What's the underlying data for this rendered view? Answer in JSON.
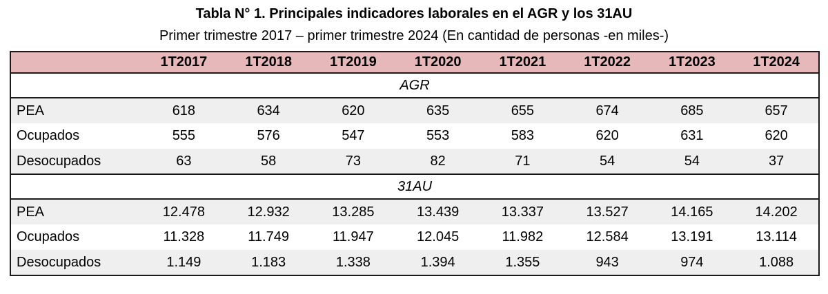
{
  "title": "Tabla N° 1. Principales indicadores laborales en el AGR y los 31AU",
  "subtitle": "Primer trimestre 2017 – primer trimestre 2024 (En cantidad de personas -en miles-)",
  "colors": {
    "header_bg": "#e6b8b9",
    "stripe_bg": "#efefef",
    "section_bg": "#ffffff",
    "border": "#1a1a1a",
    "text": "#000000"
  },
  "chart_data": {
    "type": "table",
    "title": "Tabla N° 1. Principales indicadores laborales en el AGR y los 31AU",
    "subtitle": "Primer trimestre 2017 – primer trimestre 2024 (En cantidad de personas -en miles-)",
    "columns": [
      "",
      "1T2017",
      "1T2018",
      "1T2019",
      "1T2020",
      "1T2021",
      "1T2022",
      "1T2023",
      "1T2024"
    ],
    "sections": [
      {
        "name": "AGR",
        "rows": [
          {
            "label": "PEA",
            "values": [
              "618",
              "634",
              "620",
              "635",
              "655",
              "674",
              "685",
              "657"
            ]
          },
          {
            "label": "Ocupados",
            "values": [
              "555",
              "576",
              "547",
              "553",
              "583",
              "620",
              "631",
              "620"
            ]
          },
          {
            "label": "Desocupados",
            "values": [
              "63",
              "58",
              "73",
              "82",
              "71",
              "54",
              "54",
              "37"
            ]
          }
        ]
      },
      {
        "name": "31AU",
        "rows": [
          {
            "label": "PEA",
            "values": [
              "12.478",
              "12.932",
              "13.285",
              "13.439",
              "13.337",
              "13.527",
              "14.165",
              "14.202"
            ]
          },
          {
            "label": "Ocupados",
            "values": [
              "11.328",
              "11.749",
              "11.947",
              "12.045",
              "11.982",
              "12.584",
              "13.191",
              "13.114"
            ]
          },
          {
            "label": "Desocupados",
            "values": [
              "1.149",
              "1.183",
              "1.338",
              "1.394",
              "1.355",
              "943",
              "974",
              "1.088"
            ]
          }
        ]
      }
    ]
  }
}
